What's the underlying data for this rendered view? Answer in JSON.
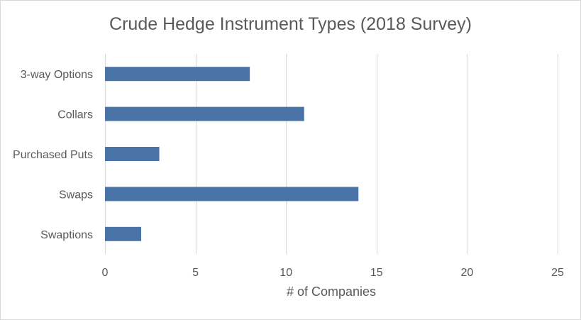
{
  "chart_data": {
    "type": "bar",
    "orientation": "horizontal",
    "title": "Crude Hedge Instrument Types (2018 Survey)",
    "xlabel": "# of Companies",
    "ylabel": "",
    "categories": [
      "3-way Options",
      "Collars",
      "Purchased Puts",
      "Swaps",
      "Swaptions"
    ],
    "values": [
      8,
      11,
      3,
      14,
      2
    ],
    "xlim": [
      0,
      25
    ],
    "xticks": [
      0,
      5,
      10,
      15,
      20,
      25
    ],
    "grid": "vertical",
    "legend": "none",
    "bar_color": "#4a73a8"
  }
}
